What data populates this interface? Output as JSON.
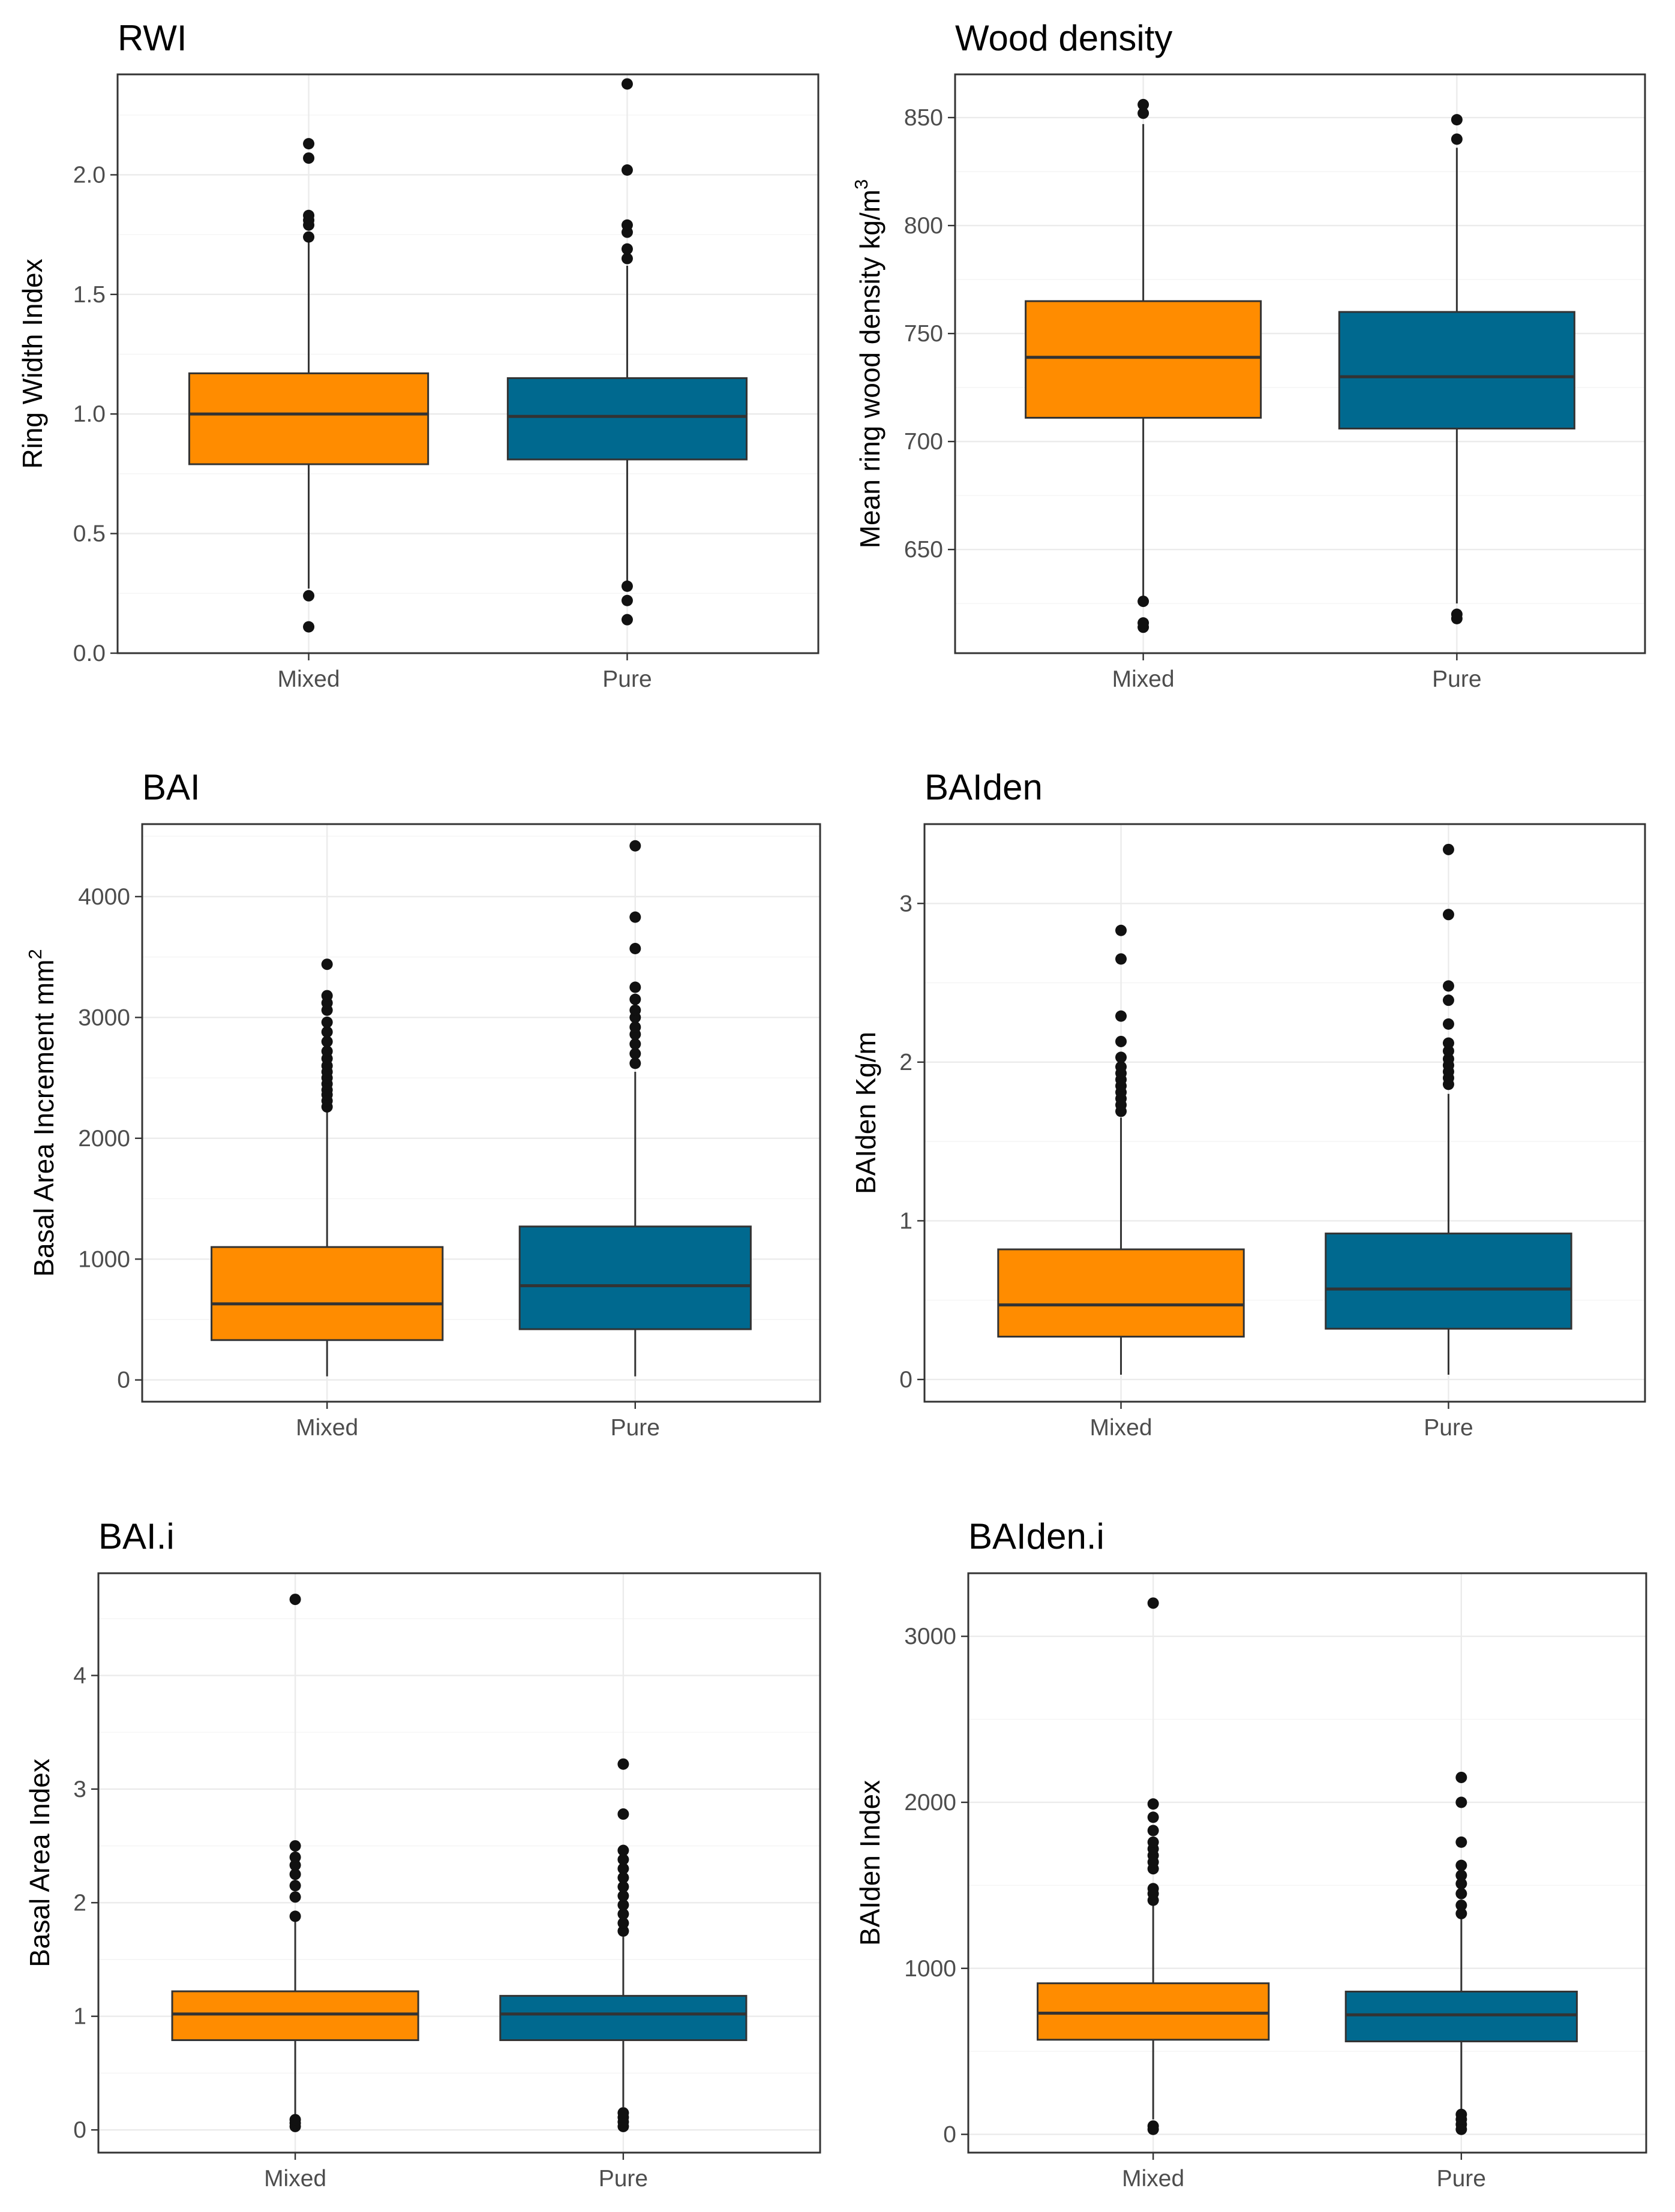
{
  "colors": {
    "Mixed": "#FF8C00",
    "Pure": "#00698F"
  },
  "chart_data": [
    {
      "type": "box",
      "title": "RWI",
      "ylabel": "Ring Width Index",
      "ylabel_sup": "",
      "categories": [
        "Mixed",
        "Pure"
      ],
      "ylim": [
        0,
        2.42
      ],
      "yticks": [
        0,
        0.5,
        1,
        1.5,
        2
      ],
      "ytick_labels": [
        "0.0",
        "0.5",
        "1.0",
        "1.5",
        "2.0"
      ],
      "boxes": [
        {
          "category": "Mixed",
          "low": 0.27,
          "q1": 0.79,
          "median": 1.0,
          "q3": 1.17,
          "high": 1.72,
          "outliers": [
            0.11,
            0.24,
            1.74,
            1.79,
            1.81,
            1.83,
            2.07,
            2.13
          ]
        },
        {
          "category": "Pure",
          "low": 0.28,
          "q1": 0.81,
          "median": 0.99,
          "q3": 1.15,
          "high": 1.62,
          "outliers": [
            0.14,
            0.22,
            0.28,
            1.65,
            1.69,
            1.76,
            1.79,
            2.02,
            2.38
          ]
        }
      ]
    },
    {
      "type": "box",
      "title": "Wood density",
      "ylabel": "Mean ring wood density kg/m",
      "ylabel_sup": "3",
      "categories": [
        "Mixed",
        "Pure"
      ],
      "ylim": [
        602,
        870
      ],
      "yticks": [
        650,
        700,
        750,
        800,
        850
      ],
      "ytick_labels": [
        "650",
        "700",
        "750",
        "800",
        "850"
      ],
      "boxes": [
        {
          "category": "Mixed",
          "low": 628,
          "q1": 711,
          "median": 739,
          "q3": 765,
          "high": 847,
          "outliers": [
            614,
            616,
            626,
            852,
            856
          ]
        },
        {
          "category": "Pure",
          "low": 625,
          "q1": 706,
          "median": 730,
          "q3": 760,
          "high": 836,
          "outliers": [
            618,
            620,
            840,
            849
          ]
        }
      ]
    },
    {
      "type": "box",
      "title": "BAI",
      "ylabel": "Basal Area Increment mm",
      "ylabel_sup": "2",
      "categories": [
        "Mixed",
        "Pure"
      ],
      "ylim": [
        -180,
        4600
      ],
      "yticks": [
        0,
        1000,
        2000,
        3000,
        4000
      ],
      "ytick_labels": [
        "0",
        "1000",
        "2000",
        "3000",
        "4000"
      ],
      "boxes": [
        {
          "category": "Mixed",
          "low": 30,
          "q1": 330,
          "median": 630,
          "q3": 1100,
          "high": 2230,
          "outliers": [
            2260,
            2310,
            2360,
            2400,
            2450,
            2500,
            2550,
            2600,
            2660,
            2720,
            2800,
            2880,
            2960,
            3060,
            3120,
            3180,
            3440
          ]
        },
        {
          "category": "Pure",
          "low": 30,
          "q1": 420,
          "median": 780,
          "q3": 1270,
          "high": 2550,
          "outliers": [
            2620,
            2700,
            2780,
            2860,
            2920,
            3000,
            3060,
            3150,
            3250,
            3570,
            3830,
            4420
          ]
        }
      ]
    },
    {
      "type": "box",
      "title": "BAIden",
      "ylabel": "BAIden Kg/m",
      "ylabel_sup": "",
      "categories": [
        "Mixed",
        "Pure"
      ],
      "ylim": [
        -0.14,
        3.5
      ],
      "yticks": [
        0,
        1,
        2,
        3
      ],
      "ytick_labels": [
        "0",
        "1",
        "2",
        "3"
      ],
      "boxes": [
        {
          "category": "Mixed",
          "low": 0.03,
          "q1": 0.27,
          "median": 0.47,
          "q3": 0.82,
          "high": 1.65,
          "outliers": [
            1.69,
            1.73,
            1.77,
            1.81,
            1.85,
            1.89,
            1.93,
            1.97,
            2.03,
            2.13,
            2.29,
            2.65,
            2.83
          ]
        },
        {
          "category": "Pure",
          "low": 0.03,
          "q1": 0.32,
          "median": 0.57,
          "q3": 0.92,
          "high": 1.8,
          "outliers": [
            1.86,
            1.9,
            1.94,
            1.98,
            2.02,
            2.07,
            2.12,
            2.24,
            2.39,
            2.48,
            2.93,
            3.34
          ]
        }
      ]
    },
    {
      "type": "box",
      "title": "BAI.i",
      "ylabel": "Basal Area Index",
      "ylabel_sup": "",
      "categories": [
        "Mixed",
        "Pure"
      ],
      "ylim": [
        -0.2,
        4.9
      ],
      "yticks": [
        0,
        1,
        2,
        3,
        4
      ],
      "ytick_labels": [
        "0",
        "1",
        "2",
        "3",
        "4"
      ],
      "boxes": [
        {
          "category": "Mixed",
          "low": 0.12,
          "q1": 0.79,
          "median": 1.02,
          "q3": 1.22,
          "high": 1.84,
          "outliers": [
            0.03,
            0.06,
            0.09,
            1.88,
            2.05,
            2.15,
            2.25,
            2.33,
            2.4,
            2.5,
            4.67
          ]
        },
        {
          "category": "Pure",
          "low": 0.2,
          "q1": 0.79,
          "median": 1.02,
          "q3": 1.18,
          "high": 1.7,
          "outliers": [
            0.03,
            0.07,
            0.11,
            0.15,
            1.75,
            1.82,
            1.9,
            1.98,
            2.06,
            2.14,
            2.22,
            2.3,
            2.38,
            2.46,
            2.78,
            3.22
          ]
        }
      ]
    },
    {
      "type": "box",
      "title": "BAIden.i",
      "ylabel": "BAIden Index",
      "ylabel_sup": "",
      "categories": [
        "Mixed",
        "Pure"
      ],
      "ylim": [
        -110,
        3380
      ],
      "yticks": [
        0,
        1000,
        2000,
        3000
      ],
      "ytick_labels": [
        "0",
        "1000",
        "2000",
        "3000"
      ],
      "boxes": [
        {
          "category": "Mixed",
          "low": 90,
          "q1": 570,
          "median": 730,
          "q3": 910,
          "high": 1390,
          "outliers": [
            30,
            50,
            1410,
            1450,
            1480,
            1600,
            1640,
            1680,
            1720,
            1760,
            1830,
            1910,
            1990,
            3200
          ]
        },
        {
          "category": "Pure",
          "low": 150,
          "q1": 560,
          "median": 720,
          "q3": 860,
          "high": 1300,
          "outliers": [
            30,
            60,
            90,
            120,
            1330,
            1380,
            1450,
            1510,
            1560,
            1620,
            1760,
            2000,
            2150
          ]
        }
      ]
    }
  ]
}
